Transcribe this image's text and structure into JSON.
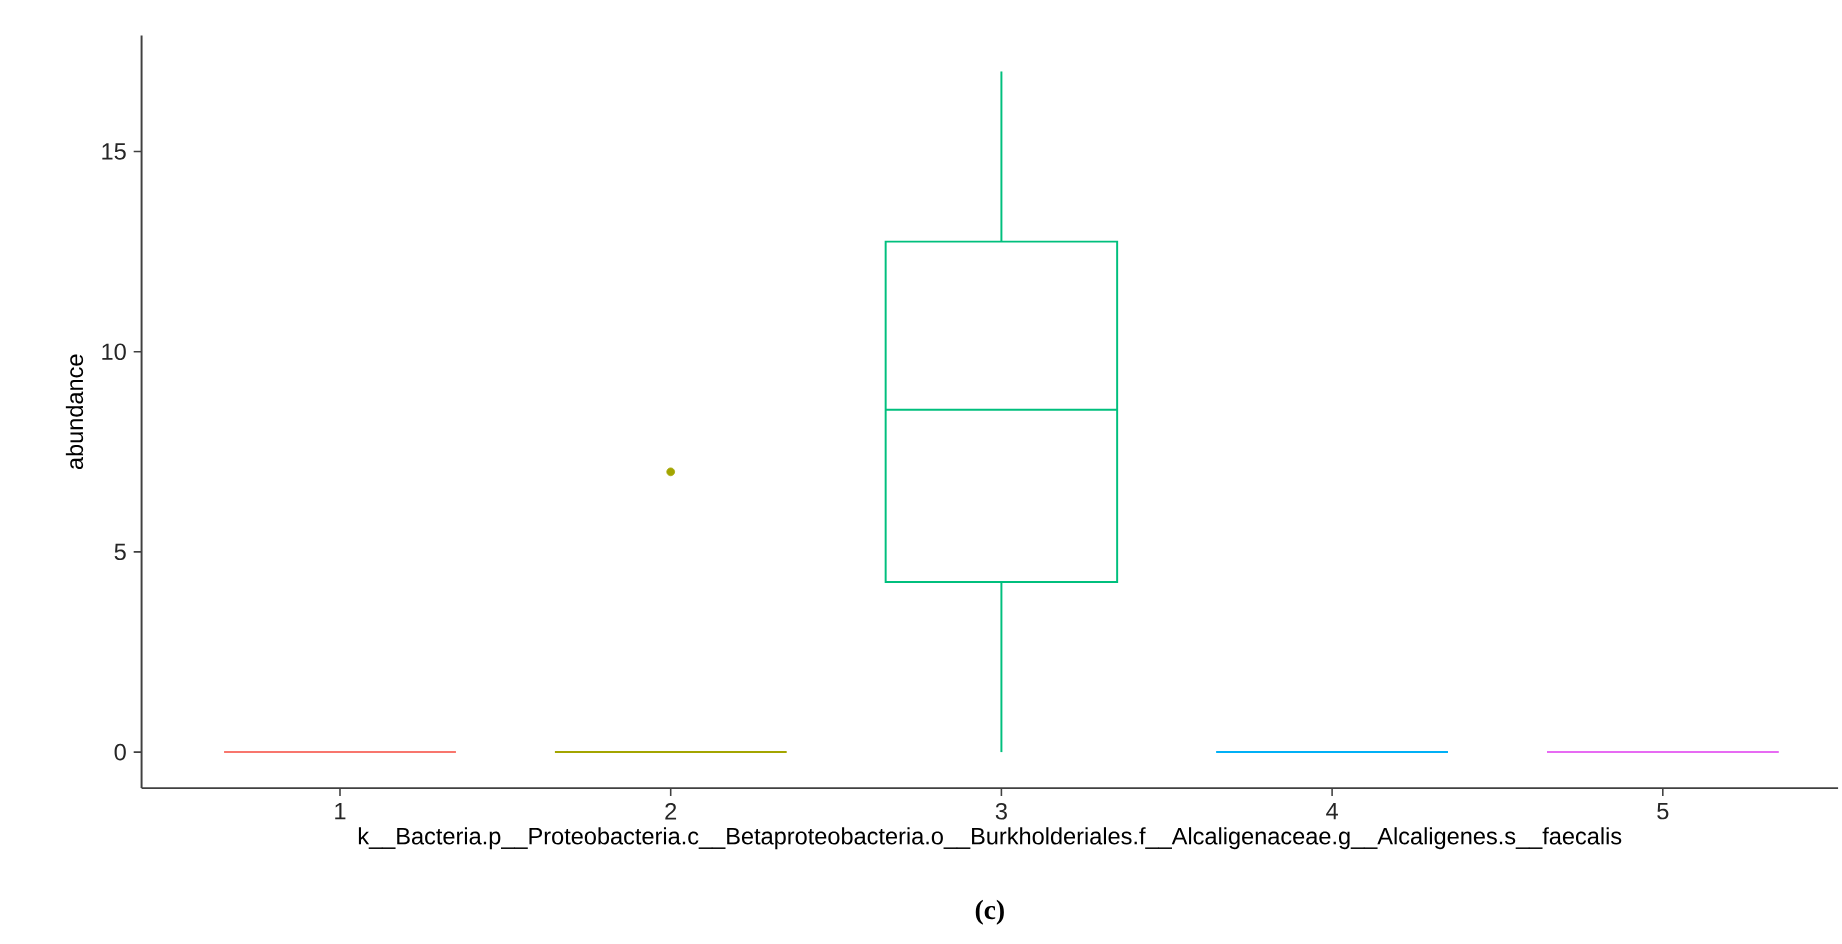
{
  "chart_data": {
    "type": "box",
    "categories": [
      "1",
      "2",
      "3",
      "4",
      "5"
    ],
    "xlabel": "k__Bacteria.p__Proteobacteria.c__Betaproteobacteria.o__Burkholderiales.f__Alcaligenaceae.g__Alcaligenes.s__faecalis",
    "ylabel": "abundance",
    "annotations": [
      "(c)"
    ],
    "colors": [
      "#f8766d",
      "#a3a500",
      "#00bf7d",
      "#00b0f6",
      "#e76bf3"
    ],
    "boxes": [
      {
        "low": 0,
        "q1": 0,
        "median": 0,
        "q3": 0,
        "high": 0
      },
      {
        "low": 0,
        "q1": 0,
        "median": 0,
        "q3": 0,
        "high": 0,
        "outliers": [
          7
        ]
      },
      {
        "low": 0,
        "q1": 4.25,
        "median": 8.55,
        "q3": 12.75,
        "high": 17
      },
      {
        "low": 0,
        "q1": 0,
        "median": 0,
        "q3": 0,
        "high": 0
      },
      {
        "low": 0,
        "q1": 0,
        "median": 0,
        "q3": 0,
        "high": 0
      }
    ],
    "ylim": [
      -0.9,
      17.9
    ],
    "yticks": [
      0,
      5,
      10,
      15
    ]
  }
}
